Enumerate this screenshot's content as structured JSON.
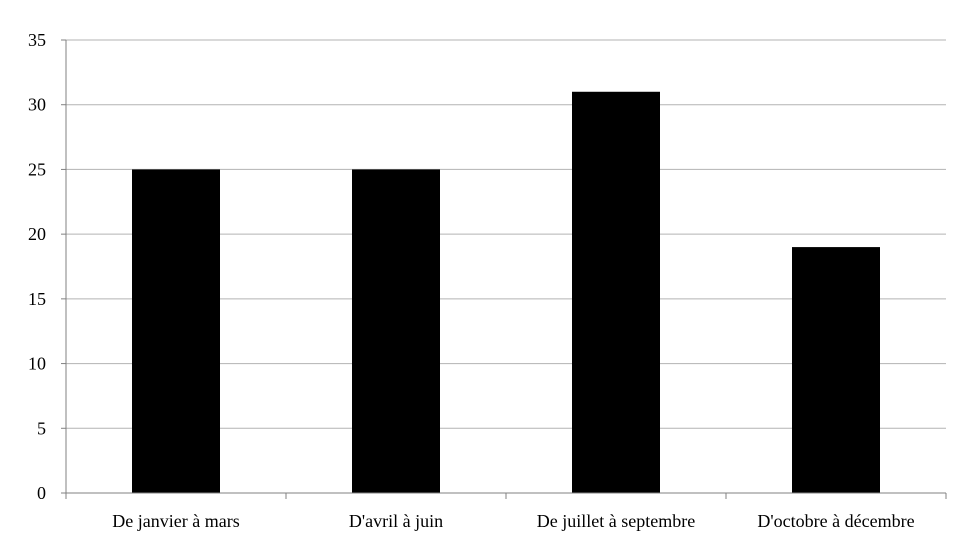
{
  "chart_data": {
    "type": "bar",
    "categories": [
      "De janvier à mars",
      "D'avril à juin",
      "De juillet à septembre",
      "D'octobre à décembre"
    ],
    "values": [
      25,
      25,
      31,
      19
    ],
    "title": "",
    "xlabel": "",
    "ylabel": "",
    "ylim": [
      0,
      35
    ],
    "yticks": [
      "0",
      "5",
      "10",
      "15",
      "20",
      "25",
      "30",
      "35"
    ],
    "grid": true,
    "legend": "none",
    "bar_color": "#000000",
    "grid_color": "#b3b3b3"
  }
}
